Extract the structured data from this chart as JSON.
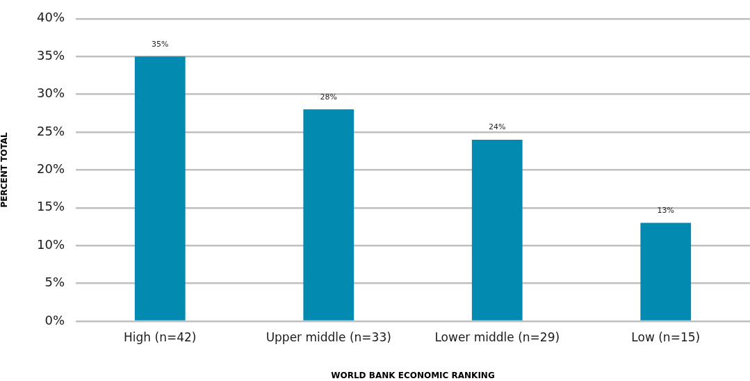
{
  "chart_data": {
    "type": "bar",
    "xlabel": "WORLD BANK ECONOMIC RANKING",
    "ylabel": "PERCENT TOTAL",
    "categories": [
      "High (n=42)",
      "Upper middle (n=33)",
      "Lower middle (n=29)",
      "Low (n=15)"
    ],
    "values": [
      35,
      28,
      24,
      13
    ],
    "value_labels": [
      "35%",
      "28%",
      "24%",
      "13%"
    ],
    "color": "#028ab0",
    "ylim": [
      0,
      40
    ],
    "yticks": [
      {
        "value": 0,
        "label": "0%"
      },
      {
        "value": 5,
        "label": "5%"
      },
      {
        "value": 10,
        "label": "10%"
      },
      {
        "value": 15,
        "label": "15%"
      },
      {
        "value": 20,
        "label": "20%"
      },
      {
        "value": 25,
        "label": "25%"
      },
      {
        "value": 30,
        "label": "30%"
      },
      {
        "value": 35,
        "label": "35%"
      },
      {
        "value": 40,
        "label": "40%"
      }
    ],
    "grid": "y"
  }
}
